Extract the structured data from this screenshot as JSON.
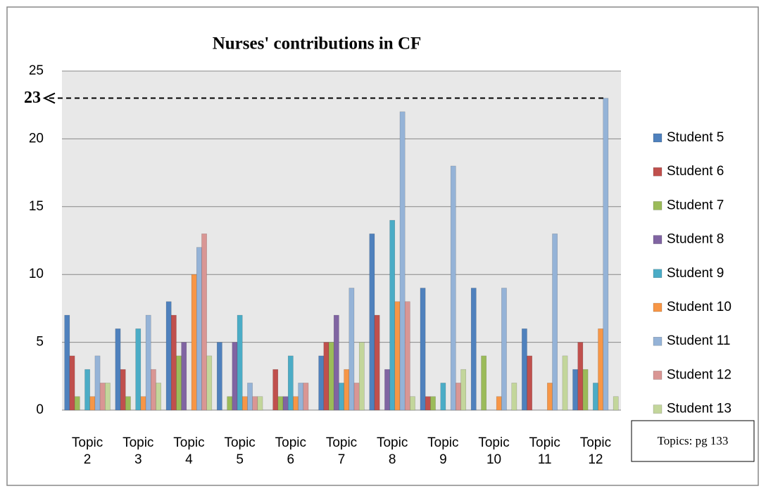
{
  "chart_data": {
    "type": "bar",
    "title": "Nurses' contributions in CF",
    "categories": [
      "Topic 2",
      "Topic 3",
      "Topic 4",
      "Topic 5",
      "Topic 6",
      "Topic 7",
      "Topic 8",
      "Topic 9",
      "Topic 10",
      "Topic 11",
      "Topic 12"
    ],
    "series": [
      {
        "name": "Student 5",
        "color": "#4f81bd",
        "values": [
          7,
          6,
          8,
          5,
          0,
          4,
          13,
          9,
          9,
          6,
          3
        ]
      },
      {
        "name": "Student 6",
        "color": "#c0504d",
        "values": [
          4,
          3,
          7,
          0,
          3,
          5,
          7,
          1,
          0,
          4,
          5
        ]
      },
      {
        "name": "Student 7",
        "color": "#9bbb59",
        "values": [
          1,
          1,
          4,
          1,
          1,
          5,
          0,
          1,
          4,
          0,
          3
        ]
      },
      {
        "name": "Student 8",
        "color": "#8064a2",
        "values": [
          0,
          0,
          5,
          5,
          1,
          7,
          3,
          0,
          0,
          0,
          0
        ]
      },
      {
        "name": "Student 9",
        "color": "#4bacc6",
        "values": [
          3,
          6,
          0,
          7,
          4,
          2,
          14,
          2,
          0,
          0,
          2
        ]
      },
      {
        "name": "Student 10",
        "color": "#f79646",
        "values": [
          1,
          1,
          10,
          1,
          1,
          3,
          8,
          0,
          1,
          2,
          6
        ]
      },
      {
        "name": "Student 11",
        "color": "#95b3d7",
        "values": [
          4,
          7,
          12,
          2,
          2,
          9,
          22,
          18,
          9,
          13,
          23
        ]
      },
      {
        "name": "Student 12",
        "color": "#d99694",
        "values": [
          2,
          3,
          13,
          1,
          2,
          2,
          8,
          2,
          0,
          0,
          0
        ]
      },
      {
        "name": "Student 13",
        "color": "#c3d69b",
        "values": [
          2,
          2,
          4,
          1,
          0,
          5,
          1,
          3,
          2,
          4,
          1
        ]
      }
    ],
    "ylim": [
      0,
      25
    ],
    "yticks": [
      0,
      5,
      10,
      15,
      20,
      25
    ],
    "grid": true,
    "reference_value": 23,
    "note": "Topics: pg 133"
  }
}
